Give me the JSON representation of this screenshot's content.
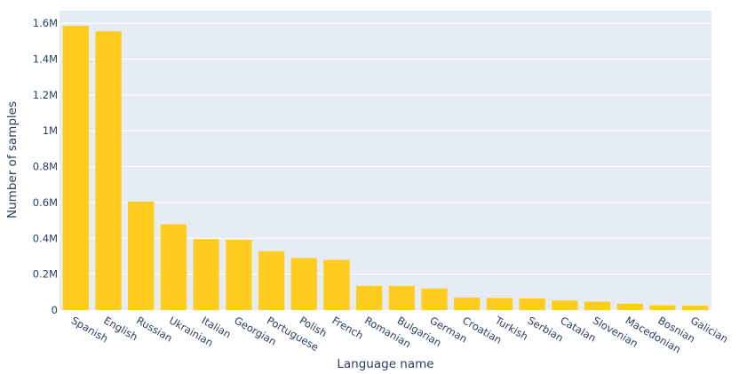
{
  "chart_data": {
    "type": "bar",
    "title": "",
    "xlabel": "Language name",
    "ylabel": "Number of samples",
    "ylim": [
      0,
      1670000
    ],
    "yticks": [
      0,
      200000,
      400000,
      600000,
      800000,
      1000000,
      1200000,
      1400000,
      1600000
    ],
    "ytick_labels": [
      "0",
      "0.2M",
      "0.4M",
      "0.6M",
      "0.8M",
      "1M",
      "1.2M",
      "1.4M",
      "1.6M"
    ],
    "grid": true,
    "legend": "none",
    "bar_color": "#ffcc1f",
    "plot_bg": "#e5ecf6",
    "categories": [
      "Spanish",
      "English",
      "Russian",
      "Ukrainian",
      "Italian",
      "Georgian",
      "Portuguese",
      "Polish",
      "French",
      "Romanian",
      "Bulgarian",
      "German",
      "Croatian",
      "Turkish",
      "Serbian",
      "Catalan",
      "Slovenian",
      "Macedonian",
      "Bosnian",
      "Galician"
    ],
    "values": [
      1585000,
      1555000,
      605000,
      478000,
      396000,
      392000,
      328000,
      290000,
      280000,
      135000,
      135000,
      120000,
      70000,
      67000,
      65000,
      53000,
      47000,
      35000,
      26000,
      24000
    ]
  }
}
